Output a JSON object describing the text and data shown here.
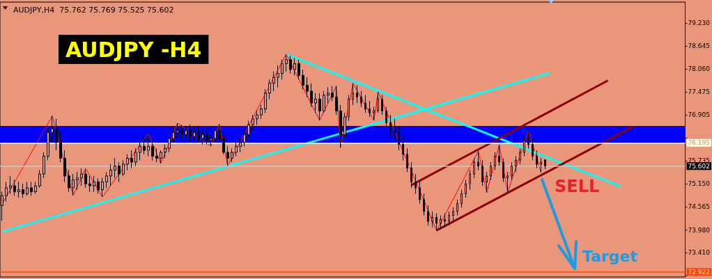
{
  "chart_data": {
    "type": "candlestick",
    "title": "AUDJPY,H4  75.762 75.769 75.525 75.602",
    "annotations": [
      "AUDJPY -H4",
      "SELL",
      "Target"
    ],
    "categories": [
      null,
      null,
      null,
      null,
      null,
      null,
      null,
      null,
      null,
      null,
      null,
      null,
      null,
      null,
      null,
      null,
      null,
      null,
      null,
      null,
      null,
      null,
      null,
      null,
      null,
      null,
      null,
      null,
      null,
      null,
      null,
      null,
      null,
      null,
      null,
      null,
      null,
      null,
      null,
      null,
      null,
      null,
      null,
      null,
      null,
      null,
      null,
      null,
      null,
      null,
      null,
      null,
      null,
      null,
      null,
      null,
      null,
      null,
      null,
      null,
      null,
      null,
      null,
      null,
      null,
      null,
      null,
      null,
      null,
      null,
      null,
      null,
      null,
      null,
      null,
      null,
      null,
      null,
      null,
      null,
      null,
      null,
      null,
      null,
      null,
      null,
      null,
      null,
      null,
      null,
      null,
      null,
      null,
      null,
      null,
      null,
      null,
      null,
      null,
      null,
      null,
      null,
      null,
      null,
      null,
      null,
      null,
      null,
      null,
      null,
      null,
      null,
      null,
      null,
      null,
      null,
      null,
      null,
      null,
      null,
      null,
      null,
      null,
      null,
      null,
      null,
      null,
      null,
      null,
      null,
      null,
      null,
      null,
      null,
      null,
      null,
      null,
      null,
      null,
      null,
      null,
      null,
      null,
      null,
      null,
      null,
      null,
      null,
      null,
      null,
      null,
      null,
      null,
      null,
      null,
      null,
      null,
      null,
      null,
      null,
      null,
      null,
      null,
      null
    ],
    "color": "#000000",
    "ohlc": [
      [
        74.6,
        74.95,
        74.22,
        74.85
      ],
      [
        74.85,
        75.2,
        74.7,
        75.05
      ],
      [
        75.05,
        75.35,
        74.9,
        75.1
      ],
      [
        75.1,
        75.25,
        74.85,
        74.95
      ],
      [
        74.95,
        75.2,
        74.8,
        75.0
      ],
      [
        75.0,
        75.15,
        74.8,
        74.9
      ],
      [
        74.9,
        75.2,
        74.85,
        75.05
      ],
      [
        75.05,
        75.2,
        74.85,
        74.95
      ],
      [
        74.95,
        75.2,
        74.9,
        75.1
      ],
      [
        75.1,
        75.5,
        75.05,
        75.4
      ],
      [
        75.4,
        75.95,
        75.3,
        75.85
      ],
      [
        75.85,
        76.55,
        75.75,
        76.45
      ],
      [
        76.45,
        76.87,
        76.2,
        76.55
      ],
      [
        76.55,
        76.8,
        76.0,
        76.2
      ],
      [
        76.2,
        76.5,
        75.7,
        75.8
      ],
      [
        75.8,
        76.0,
        75.2,
        75.35
      ],
      [
        75.35,
        75.5,
        74.95,
        75.05
      ],
      [
        75.05,
        75.4,
        74.86,
        75.25
      ],
      [
        75.25,
        75.45,
        75.0,
        75.3
      ],
      [
        75.3,
        75.54,
        75.1,
        75.4
      ],
      [
        75.4,
        75.5,
        75.05,
        75.15
      ],
      [
        75.15,
        75.35,
        74.95,
        75.1
      ],
      [
        75.1,
        75.35,
        74.95,
        75.2
      ],
      [
        75.2,
        75.3,
        74.9,
        75.0
      ],
      [
        75.0,
        75.3,
        74.82,
        75.2
      ],
      [
        75.2,
        75.45,
        75.05,
        75.35
      ],
      [
        75.35,
        75.65,
        75.1,
        75.5
      ],
      [
        75.5,
        75.8,
        75.3,
        75.6
      ],
      [
        75.6,
        75.7,
        75.2,
        75.4
      ],
      [
        75.4,
        75.75,
        75.35,
        75.65
      ],
      [
        75.65,
        75.9,
        75.5,
        75.8
      ],
      [
        75.8,
        76.0,
        75.55,
        75.7
      ],
      [
        75.7,
        76.05,
        75.6,
        75.95
      ],
      [
        75.95,
        76.2,
        75.75,
        76.1
      ],
      [
        76.1,
        76.35,
        75.9,
        76.0
      ],
      [
        76.0,
        76.43,
        75.85,
        76.1
      ],
      [
        76.1,
        76.25,
        75.75,
        75.85
      ],
      [
        75.85,
        76.05,
        75.7,
        75.8
      ],
      [
        75.8,
        76.0,
        75.67,
        75.95
      ],
      [
        75.95,
        76.15,
        75.8,
        76.05
      ],
      [
        76.05,
        76.35,
        75.95,
        76.3
      ],
      [
        76.3,
        76.6,
        76.2,
        76.45
      ],
      [
        76.45,
        76.69,
        76.3,
        76.5
      ],
      [
        76.5,
        76.65,
        76.3,
        76.4
      ],
      [
        76.4,
        76.6,
        76.25,
        76.5
      ],
      [
        76.5,
        76.65,
        76.2,
        76.35
      ],
      [
        76.35,
        76.6,
        76.25,
        76.45
      ],
      [
        76.45,
        76.6,
        76.2,
        76.3
      ],
      [
        76.3,
        76.5,
        76.15,
        76.4
      ],
      [
        76.4,
        76.55,
        76.15,
        76.25
      ],
      [
        76.25,
        76.4,
        76.11,
        76.3
      ],
      [
        76.3,
        76.55,
        76.2,
        76.5
      ],
      [
        76.5,
        76.66,
        76.2,
        76.3
      ],
      [
        76.3,
        76.4,
        75.9,
        75.95
      ],
      [
        75.95,
        76.1,
        75.61,
        75.8
      ],
      [
        75.8,
        76.05,
        75.7,
        75.95
      ],
      [
        75.95,
        76.2,
        75.85,
        76.1
      ],
      [
        76.1,
        76.3,
        75.95,
        76.2
      ],
      [
        76.2,
        76.5,
        76.1,
        76.4
      ],
      [
        76.4,
        76.75,
        76.3,
        76.65
      ],
      [
        76.65,
        76.9,
        76.5,
        76.8
      ],
      [
        76.8,
        77.0,
        76.65,
        76.9
      ],
      [
        76.9,
        77.15,
        76.8,
        77.05
      ],
      [
        77.05,
        77.55,
        76.95,
        77.45
      ],
      [
        77.45,
        77.8,
        77.3,
        77.7
      ],
      [
        77.7,
        78.0,
        77.5,
        77.85
      ],
      [
        77.85,
        78.15,
        77.6,
        77.95
      ],
      [
        77.95,
        78.3,
        77.8,
        78.2
      ],
      [
        78.2,
        78.44,
        78.0,
        78.3
      ],
      [
        78.3,
        78.4,
        77.95,
        78.05
      ],
      [
        78.05,
        78.35,
        77.9,
        78.2
      ],
      [
        78.2,
        78.3,
        77.8,
        77.9
      ],
      [
        77.9,
        78.05,
        77.55,
        77.65
      ],
      [
        77.65,
        77.85,
        77.35,
        77.5
      ],
      [
        77.5,
        77.7,
        77.1,
        77.2
      ],
      [
        77.2,
        77.45,
        76.95,
        77.3
      ],
      [
        77.3,
        77.45,
        76.76,
        77.0
      ],
      [
        77.0,
        77.5,
        76.95,
        77.4
      ],
      [
        77.4,
        77.6,
        77.2,
        77.45
      ],
      [
        77.45,
        77.63,
        77.25,
        77.35
      ],
      [
        77.35,
        77.63,
        76.9,
        77.0
      ],
      [
        77.0,
        77.15,
        76.07,
        76.4
      ],
      [
        76.4,
        76.95,
        76.3,
        76.85
      ],
      [
        76.85,
        77.4,
        76.75,
        77.3
      ],
      [
        77.3,
        77.7,
        77.15,
        77.45
      ],
      [
        77.45,
        77.65,
        77.2,
        77.35
      ],
      [
        77.35,
        77.5,
        77.1,
        77.2
      ],
      [
        77.2,
        77.4,
        76.95,
        77.05
      ],
      [
        77.05,
        77.25,
        76.85,
        76.95
      ],
      [
        76.95,
        77.1,
        76.76,
        77.0
      ],
      [
        77.0,
        77.48,
        76.95,
        77.3
      ],
      [
        77.3,
        77.4,
        76.9,
        77.0
      ],
      [
        77.0,
        77.1,
        76.6,
        76.7
      ],
      [
        76.7,
        76.9,
        76.35,
        76.5
      ],
      [
        76.5,
        76.8,
        76.3,
        76.45
      ],
      [
        76.45,
        76.6,
        76.0,
        76.15
      ],
      [
        76.15,
        76.35,
        75.75,
        75.9
      ],
      [
        75.9,
        76.05,
        75.45,
        75.55
      ],
      [
        75.55,
        75.7,
        75.05,
        75.2
      ],
      [
        75.2,
        75.4,
        74.9,
        75.05
      ],
      [
        75.05,
        75.2,
        74.65,
        74.75
      ],
      [
        74.75,
        74.9,
        74.35,
        74.45
      ],
      [
        74.45,
        74.6,
        74.1,
        74.2
      ],
      [
        74.2,
        74.45,
        74.05,
        74.3
      ],
      [
        74.3,
        74.4,
        73.96,
        74.15
      ],
      [
        74.15,
        74.35,
        74.0,
        74.25
      ],
      [
        74.25,
        74.4,
        74.05,
        74.2
      ],
      [
        74.2,
        74.45,
        74.1,
        74.35
      ],
      [
        74.35,
        74.55,
        74.2,
        74.45
      ],
      [
        74.45,
        74.75,
        74.35,
        74.65
      ],
      [
        74.65,
        75.0,
        74.55,
        74.9
      ],
      [
        74.9,
        75.25,
        74.8,
        75.15
      ],
      [
        75.15,
        75.5,
        75.0,
        75.4
      ],
      [
        75.4,
        75.8,
        75.3,
        75.7
      ],
      [
        75.7,
        75.98,
        75.5,
        75.6
      ],
      [
        75.6,
        75.75,
        75.1,
        75.2
      ],
      [
        75.2,
        75.45,
        74.93,
        75.35
      ],
      [
        75.35,
        75.7,
        75.25,
        75.6
      ],
      [
        75.6,
        75.95,
        75.5,
        75.85
      ],
      [
        75.85,
        76.14,
        75.6,
        75.7
      ],
      [
        75.7,
        75.8,
        75.2,
        75.3
      ],
      [
        75.3,
        75.45,
        74.94,
        75.35
      ],
      [
        75.35,
        75.7,
        75.25,
        75.6
      ],
      [
        75.6,
        75.85,
        75.45,
        75.75
      ],
      [
        75.75,
        76.05,
        75.65,
        75.95
      ],
      [
        75.95,
        76.35,
        75.85,
        76.25
      ],
      [
        76.25,
        76.5,
        76.05,
        76.15
      ],
      [
        76.15,
        76.3,
        75.75,
        75.85
      ],
      [
        75.85,
        76.0,
        75.55,
        75.65
      ],
      [
        75.65,
        75.8,
        75.44,
        75.7
      ],
      [
        75.762,
        75.769,
        75.525,
        75.602
      ],
      null,
      null,
      null,
      null,
      null,
      null,
      null,
      null,
      null,
      null,
      null,
      null,
      null,
      null,
      null,
      null,
      null,
      null,
      null,
      null,
      null,
      null,
      null,
      null,
      null,
      null,
      null,
      null,
      null,
      null,
      null,
      null,
      null
    ],
    "series": [
      {
        "type": "line",
        "color": "#ff0000",
        "values": [
          74.64,
          null,
          null,
          null,
          null,
          null,
          null,
          null,
          null,
          null,
          null,
          null,
          76.87,
          null,
          null,
          null,
          null,
          74.86,
          null,
          null,
          75.54,
          null,
          null,
          null,
          74.82,
          null,
          null,
          null,
          null,
          null,
          null,
          null,
          null,
          null,
          null,
          76.43,
          null,
          null,
          75.67,
          null,
          null,
          null,
          76.69,
          null,
          null,
          null,
          null,
          null,
          null,
          null,
          76.11,
          null,
          76.66,
          null,
          75.61,
          null,
          null,
          null,
          null,
          null,
          null,
          null,
          null,
          null,
          null,
          null,
          null,
          null,
          78.44,
          null,
          null,
          null,
          null,
          null,
          null,
          null,
          76.76,
          null,
          null,
          null,
          77.63,
          76.07,
          null,
          null,
          77.7,
          null,
          null,
          null,
          null,
          76.76,
          77.48,
          null,
          null,
          null,
          null,
          null,
          null,
          null,
          null,
          null,
          null,
          null,
          null,
          null,
          73.96,
          null,
          null,
          null,
          null,
          null,
          null,
          null,
          null,
          null,
          75.98,
          null,
          74.93,
          null,
          null,
          76.14,
          null,
          74.94,
          null,
          null,
          null,
          null,
          76.5,
          null,
          null,
          75.44,
          null,
          null,
          null,
          null,
          null,
          null,
          null,
          null,
          null,
          null,
          null,
          null,
          null,
          null,
          null,
          null,
          null,
          null,
          null,
          null,
          null,
          null,
          null,
          null,
          null,
          null,
          null,
          null,
          null,
          null,
          null,
          null,
          null,
          null
        ]
      },
      {
        "type": "line",
        "color": "#00ffff",
        "values": [
          73.94,
          null,
          null,
          null,
          null,
          null,
          null,
          null,
          null,
          null,
          null,
          null,
          null,
          null,
          null,
          null,
          null,
          null,
          null,
          null,
          null,
          null,
          null,
          null,
          null,
          null,
          null,
          null,
          null,
          null,
          null,
          null,
          null,
          null,
          null,
          null,
          null,
          null,
          null,
          null,
          null,
          null,
          null,
          null,
          null,
          null,
          null,
          null,
          null,
          null,
          null,
          null,
          null,
          null,
          null,
          null,
          null,
          null,
          null,
          null,
          null,
          null,
          null,
          null,
          null,
          null,
          null,
          null,
          null,
          null,
          null,
          null,
          null,
          null,
          null,
          null,
          null,
          null,
          null,
          null,
          null,
          null,
          null,
          null,
          null,
          null,
          null,
          null,
          null,
          null,
          null,
          null,
          null,
          null,
          null,
          null,
          null,
          null,
          null,
          null,
          null,
          null,
          null,
          null,
          null,
          null,
          null,
          null,
          null,
          null,
          null,
          null,
          null,
          null,
          null,
          null,
          null,
          null,
          null,
          null,
          null,
          null,
          null,
          null,
          null,
          null,
          null,
          null,
          null,
          null,
          null,
          77.96,
          null,
          null,
          null,
          null,
          null,
          null,
          null,
          null,
          null,
          null,
          null,
          null,
          null,
          null,
          null,
          null,
          null,
          null,
          null,
          null,
          null,
          null,
          null,
          null,
          null,
          null,
          null,
          null,
          null,
          null,
          null,
          null
        ]
      },
      {
        "type": "line",
        "color": "#00ffff",
        "values": [
          null,
          null,
          null,
          null,
          null,
          null,
          null,
          null,
          null,
          null,
          null,
          null,
          null,
          null,
          null,
          null,
          null,
          null,
          null,
          null,
          null,
          null,
          null,
          null,
          null,
          null,
          null,
          null,
          null,
          null,
          null,
          null,
          null,
          null,
          null,
          null,
          null,
          null,
          null,
          null,
          null,
          null,
          null,
          null,
          null,
          null,
          null,
          null,
          null,
          null,
          null,
          null,
          null,
          null,
          null,
          null,
          null,
          null,
          null,
          null,
          null,
          null,
          null,
          null,
          null,
          null,
          null,
          null,
          78.44,
          null,
          null,
          null,
          null,
          null,
          null,
          null,
          null,
          null,
          null,
          null,
          null,
          null,
          null,
          null,
          null,
          null,
          null,
          null,
          null,
          null,
          null,
          null,
          null,
          null,
          null,
          null,
          null,
          null,
          null,
          null,
          null,
          null,
          null,
          null,
          null,
          null,
          null,
          null,
          null,
          null,
          null,
          null,
          null,
          null,
          null,
          null,
          null,
          null,
          null,
          null,
          null,
          null,
          null,
          null,
          null,
          null,
          null,
          null,
          null,
          null,
          null,
          null,
          null,
          null,
          null,
          null,
          null,
          null,
          null,
          null,
          null,
          null,
          null,
          null,
          null,
          null,
          null,
          null,
          75.09,
          null,
          null,
          null,
          null,
          null,
          null,
          null,
          null,
          null,
          null,
          null,
          null,
          null,
          null,
          null
        ]
      },
      {
        "type": "line",
        "color": "#8b0000",
        "values": [
          null,
          null,
          null,
          null,
          null,
          null,
          null,
          null,
          null,
          null,
          null,
          null,
          null,
          null,
          null,
          null,
          null,
          null,
          null,
          null,
          null,
          null,
          null,
          null,
          null,
          null,
          null,
          null,
          null,
          null,
          null,
          null,
          null,
          null,
          null,
          null,
          null,
          null,
          null,
          null,
          null,
          null,
          null,
          null,
          null,
          null,
          null,
          null,
          null,
          null,
          null,
          null,
          null,
          null,
          null,
          null,
          null,
          null,
          null,
          null,
          null,
          null,
          null,
          null,
          null,
          null,
          null,
          null,
          null,
          null,
          null,
          null,
          null,
          null,
          null,
          null,
          null,
          null,
          null,
          null,
          null,
          null,
          null,
          null,
          null,
          null,
          null,
          null,
          null,
          null,
          null,
          null,
          null,
          null,
          null,
          null,
          null,
          null,
          75.12,
          null,
          null,
          null,
          null,
          null,
          null,
          null,
          null,
          null,
          null,
          null,
          null,
          null,
          null,
          null,
          null,
          null,
          null,
          null,
          null,
          null,
          null,
          null,
          null,
          null,
          null,
          null,
          null,
          null,
          null,
          null,
          null,
          null,
          null,
          null,
          null,
          null,
          null,
          null,
          null,
          null,
          null,
          null,
          null,
          null,
          null,
          77.77,
          null,
          null,
          null,
          null,
          null,
          null,
          null,
          null,
          null,
          null,
          null,
          null,
          null,
          null,
          null,
          null,
          null,
          null
        ]
      },
      {
        "type": "line",
        "color": "#8b0000",
        "values": [
          null,
          null,
          null,
          null,
          null,
          null,
          null,
          null,
          null,
          null,
          null,
          null,
          null,
          null,
          null,
          null,
          null,
          null,
          null,
          null,
          null,
          null,
          null,
          null,
          null,
          null,
          null,
          null,
          null,
          null,
          null,
          null,
          null,
          null,
          null,
          null,
          null,
          null,
          null,
          null,
          null,
          null,
          null,
          null,
          null,
          null,
          null,
          null,
          null,
          null,
          null,
          null,
          null,
          null,
          null,
          null,
          null,
          null,
          null,
          null,
          null,
          null,
          null,
          null,
          null,
          null,
          null,
          null,
          null,
          null,
          null,
          null,
          null,
          null,
          null,
          null,
          null,
          null,
          null,
          null,
          null,
          null,
          null,
          null,
          null,
          null,
          null,
          null,
          null,
          null,
          null,
          null,
          null,
          null,
          null,
          null,
          null,
          null,
          null,
          null,
          null,
          null,
          null,
          null,
          73.97,
          null,
          null,
          null,
          null,
          null,
          null,
          null,
          null,
          null,
          null,
          null,
          null,
          null,
          null,
          null,
          null,
          null,
          null,
          null,
          null,
          null,
          null,
          null,
          null,
          null,
          null,
          null,
          null,
          null,
          null,
          null,
          null,
          null,
          null,
          null,
          null,
          null,
          null,
          null,
          null,
          null,
          null,
          null,
          null,
          null,
          null,
          76.6,
          null,
          null,
          null,
          null,
          null,
          null,
          null,
          null,
          null,
          null,
          null,
          null
        ]
      }
    ],
    "ylim": [
      72.79,
      79.76
    ],
    "yticks": [
      {
        "value": 79.23,
        "label": "79.230"
      },
      {
        "value": 78.645,
        "label": "78.645"
      },
      {
        "value": 78.06,
        "label": "78.060"
      },
      {
        "value": 77.475,
        "label": "77.475"
      },
      {
        "value": 76.905,
        "label": "76.905"
      },
      {
        "value": 76.32,
        "label": null
      },
      {
        "value": 75.735,
        "label": "75.735"
      },
      {
        "value": 75.15,
        "label": "75.150"
      },
      {
        "value": 74.565,
        "label": "74.565"
      },
      {
        "value": 73.98,
        "label": "73.980"
      },
      {
        "value": 73.41,
        "label": "73.410"
      },
      {
        "value": 72.825,
        "label": null
      }
    ],
    "bands": [
      {
        "axis": "y",
        "from": 76.195,
        "to": 76.62,
        "color": "#0000ff"
      }
    ],
    "ref_lines": [
      {
        "axis": "y",
        "value": 76.195,
        "label": "76.195",
        "color": "#ffffff"
      },
      {
        "axis": "y",
        "value": 75.602,
        "label": "75.602",
        "color": "#c8c8c8"
      },
      {
        "axis": "y",
        "value": 72.922,
        "label": "72.922",
        "color": "#ff4500"
      }
    ],
    "tick_labels": "y"
  }
}
